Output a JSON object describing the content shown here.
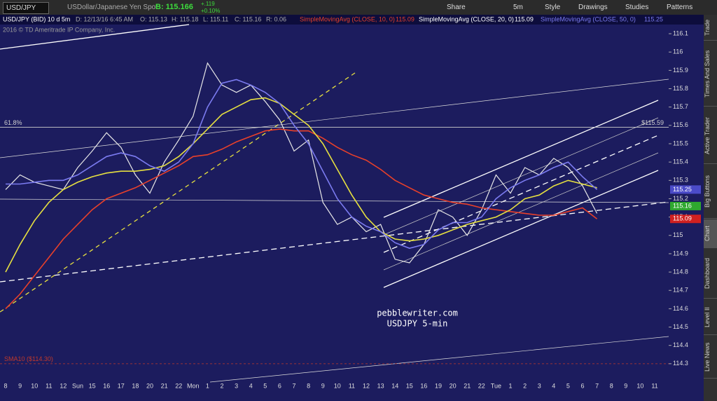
{
  "toolbar": {
    "symbol": "USD/JPY",
    "description": "USDollar/Japanese Yen Spot",
    "bid": "B: 115.166",
    "change": "+.119",
    "change_pct": "+0.10%",
    "buttons": [
      "Share",
      "5m",
      "Style",
      "Drawings",
      "Studies",
      "Patterns"
    ]
  },
  "header": {
    "day": "D: 12/13/16 6:45 AM",
    "open": "O: 115.13",
    "high": "H: 115.18",
    "low": "L: 115.11",
    "close": "C: 115.16",
    "range": "R: 0.06",
    "readings": [
      "115.09",
      "115.09",
      "115.25"
    ],
    "copyright": "2016 © TD Ameritrade IP Company, Inc."
  },
  "side_tabs": [
    "Trade",
    "Times And Sales",
    "Active Trader",
    "Big Buttons",
    "Chart",
    "Dashboard",
    "Level II",
    "Live News"
  ],
  "chart_data": {
    "type": "line",
    "watermark": [
      "pebblewriter.com",
      "USDJPY 5-min"
    ],
    "categories": [
      "8",
      "9",
      "10",
      "11",
      "12",
      "Sun",
      "15",
      "16",
      "17",
      "18",
      "20",
      "21",
      "22",
      "Mon",
      "1",
      "2",
      "3",
      "4",
      "5",
      "6",
      "7",
      "8",
      "9",
      "10",
      "11",
      "12",
      "13",
      "14",
      "15",
      "16",
      "19",
      "20",
      "21",
      "22",
      "Tue",
      "1",
      "2",
      "3",
      "4",
      "5",
      "6",
      "7",
      "8",
      "9",
      "10",
      "11"
    ],
    "series": [
      {
        "name": "USD/JPY (BID) 10 d 5m",
        "color": "#e8e8e8",
        "values": [
          115.25,
          115.33,
          115.29,
          115.27,
          115.25,
          115.37,
          115.46,
          115.56,
          115.48,
          115.33,
          115.23,
          115.4,
          115.52,
          115.65,
          115.94,
          115.82,
          115.78,
          115.82,
          115.73,
          115.63,
          115.46,
          115.52,
          115.18,
          115.06,
          115.1,
          115.02,
          115.06,
          114.87,
          114.85,
          114.95,
          115.14,
          115.1,
          115.0,
          115.14,
          115.33,
          115.23,
          115.37,
          115.33,
          115.42,
          115.37,
          115.27,
          115.12,
          null,
          null,
          null,
          null
        ]
      },
      {
        "name": "SimpleMovingAvg (CLOSE, 10, 0)",
        "color": "#e8402a",
        "values": [
          114.6,
          114.68,
          114.78,
          114.88,
          114.98,
          115.06,
          115.14,
          115.2,
          115.23,
          115.26,
          115.3,
          115.34,
          115.38,
          115.43,
          115.44,
          115.47,
          115.51,
          115.54,
          115.57,
          115.58,
          115.57,
          115.57,
          115.53,
          115.48,
          115.44,
          115.41,
          115.36,
          115.3,
          115.26,
          115.22,
          115.2,
          115.18,
          115.17,
          115.15,
          115.14,
          115.13,
          115.12,
          115.11,
          115.11,
          115.13,
          115.15,
          115.09,
          null,
          null,
          null,
          null
        ]
      },
      {
        "name": "SimpleMovingAvg (CLOSE, 20, 0)",
        "color": "#e6e040",
        "values": [
          114.8,
          114.95,
          115.08,
          115.18,
          115.25,
          115.29,
          115.32,
          115.34,
          115.35,
          115.35,
          115.36,
          115.38,
          115.43,
          115.5,
          115.58,
          115.66,
          115.7,
          115.74,
          115.75,
          115.72,
          115.66,
          115.6,
          115.5,
          115.36,
          115.22,
          115.1,
          115.02,
          114.98,
          114.97,
          114.98,
          115.0,
          115.03,
          115.06,
          115.08,
          115.1,
          115.14,
          115.2,
          115.22,
          115.27,
          115.3,
          115.28,
          115.26,
          null,
          null,
          null,
          null
        ]
      },
      {
        "name": "SimpleMovingAvg (CLOSE, 50, 0)",
        "color": "#7b7bf0",
        "values": [
          115.28,
          115.28,
          115.29,
          115.3,
          115.3,
          115.33,
          115.38,
          115.43,
          115.45,
          115.43,
          115.38,
          115.35,
          115.4,
          115.5,
          115.7,
          115.83,
          115.85,
          115.82,
          115.78,
          115.72,
          115.6,
          115.5,
          115.35,
          115.2,
          115.1,
          115.05,
          115.02,
          114.96,
          114.93,
          114.95,
          115.03,
          115.07,
          115.07,
          115.1,
          115.2,
          115.26,
          115.3,
          115.33,
          115.37,
          115.4,
          115.32,
          115.25,
          null,
          null,
          null,
          null
        ]
      }
    ],
    "ylim": [
      114.2,
      116.15
    ],
    "yticks": [
      114.3,
      114.4,
      114.5,
      114.6,
      114.7,
      114.8,
      114.9,
      115,
      115.1,
      115.2,
      115.3,
      115.4,
      115.5,
      115.6,
      115.7,
      115.8,
      115.9,
      116,
      116.1
    ],
    "levels": [
      {
        "value": 115.59,
        "left_label": "61.8%",
        "right_label": "$115.59",
        "color": "#cfcfcf"
      },
      {
        "value": 114.3,
        "left_label": "SMA10 ($114.30)",
        "color": "#c0392b"
      }
    ],
    "price_badges": [
      {
        "label": "115.25",
        "value": 115.25,
        "color": "#4b4bc8"
      },
      {
        "label": "115.16",
        "value": 115.16,
        "color": "#2fa82f"
      },
      {
        "label": "115.09",
        "value": 115.09,
        "color": "#d02020"
      }
    ]
  }
}
